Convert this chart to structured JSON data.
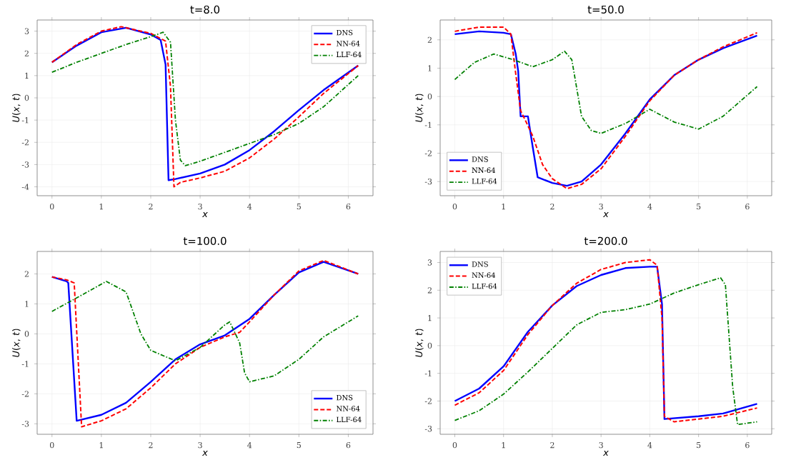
{
  "chart_data": [
    {
      "type": "line",
      "title": "t=8.0",
      "xlabel": "x",
      "ylabel": "*U*(*x*, *t*)",
      "xlim": [
        -0.3,
        6.5
      ],
      "ylim": [
        -4.4,
        3.5
      ],
      "xticks": [
        0,
        1,
        2,
        3,
        4,
        5,
        6
      ],
      "yticks": [
        -4,
        -3,
        -2,
        -1,
        0,
        1,
        2,
        3
      ],
      "grid": true,
      "legend": "top right",
      "series": [
        {
          "name": "DNS",
          "color": "#0000ff",
          "line_style": "solid",
          "x": [
            0,
            0.5,
            1.0,
            1.5,
            2.0,
            2.2,
            2.3,
            2.36,
            2.5,
            3.0,
            3.5,
            4.0,
            4.5,
            5.0,
            5.5,
            6.2
          ],
          "values": [
            1.6,
            2.35,
            2.95,
            3.15,
            2.85,
            2.6,
            1.5,
            -3.7,
            -3.65,
            -3.4,
            -3.0,
            -2.35,
            -1.5,
            -0.55,
            0.35,
            1.45
          ]
        },
        {
          "name": "NN-64",
          "color": "#ff0000",
          "line_style": "dashed",
          "x": [
            0,
            0.5,
            1.0,
            1.4,
            2.0,
            2.3,
            2.4,
            2.47,
            2.6,
            3.0,
            3.5,
            4.0,
            4.5,
            5.0,
            5.5,
            6.2
          ],
          "values": [
            1.6,
            2.4,
            3.0,
            3.2,
            2.9,
            2.55,
            0.5,
            -4.0,
            -3.8,
            -3.6,
            -3.3,
            -2.7,
            -1.85,
            -0.85,
            0.2,
            1.45
          ]
        },
        {
          "name": "LLF-64",
          "color": "#008000",
          "line_style": "dashdot",
          "x": [
            0,
            0.5,
            1.0,
            1.5,
            2.0,
            2.25,
            2.4,
            2.5,
            2.6,
            2.7,
            3.0,
            3.5,
            4.0,
            4.5,
            5.0,
            5.5,
            6.2
          ],
          "values": [
            1.15,
            1.6,
            2.0,
            2.4,
            2.75,
            2.95,
            2.5,
            -1.0,
            -2.8,
            -3.05,
            -2.85,
            -2.45,
            -2.05,
            -1.65,
            -1.15,
            -0.4,
            1.0
          ]
        }
      ]
    },
    {
      "type": "line",
      "title": "t=50.0",
      "xlabel": "x",
      "ylabel": "*U*(*x*, *t*)",
      "xlim": [
        -0.3,
        6.5
      ],
      "ylim": [
        -3.5,
        2.7
      ],
      "xticks": [
        0,
        1,
        2,
        3,
        4,
        5,
        6
      ],
      "yticks": [
        -3,
        -2,
        -1,
        0,
        1,
        2
      ],
      "grid": true,
      "legend": "bottom left",
      "series": [
        {
          "name": "DNS",
          "color": "#0000ff",
          "line_style": "solid",
          "x": [
            0,
            0.5,
            1.0,
            1.15,
            1.25,
            1.3,
            1.35,
            1.5,
            1.6,
            1.7,
            2.0,
            2.3,
            2.6,
            3.0,
            3.5,
            4.0,
            4.5,
            5.0,
            5.5,
            6.2
          ],
          "values": [
            2.2,
            2.3,
            2.25,
            2.2,
            1.5,
            0.9,
            -0.7,
            -0.7,
            -1.8,
            -2.85,
            -3.05,
            -3.15,
            -3.0,
            -2.4,
            -1.3,
            -0.1,
            0.75,
            1.3,
            1.7,
            2.15
          ]
        },
        {
          "name": "NN-64",
          "color": "#ff0000",
          "line_style": "dashed",
          "x": [
            0,
            0.5,
            1.0,
            1.15,
            1.25,
            1.35,
            1.45,
            1.6,
            1.8,
            2.0,
            2.3,
            2.6,
            3.0,
            3.5,
            4.0,
            4.5,
            5.0,
            5.5,
            6.2
          ],
          "values": [
            2.3,
            2.45,
            2.45,
            2.2,
            0.8,
            -0.5,
            -0.85,
            -1.4,
            -2.4,
            -2.9,
            -3.25,
            -3.1,
            -2.55,
            -1.4,
            -0.15,
            0.75,
            1.3,
            1.75,
            2.25
          ]
        },
        {
          "name": "LLF-64",
          "color": "#008000",
          "line_style": "dashdot",
          "x": [
            0,
            0.4,
            0.8,
            1.2,
            1.6,
            2.0,
            2.25,
            2.4,
            2.6,
            2.8,
            3.0,
            3.5,
            4.0,
            4.5,
            5.0,
            5.5,
            6.2
          ],
          "values": [
            0.6,
            1.2,
            1.5,
            1.3,
            1.05,
            1.3,
            1.6,
            1.3,
            -0.7,
            -1.2,
            -1.3,
            -0.95,
            -0.45,
            -0.9,
            -1.15,
            -0.7,
            0.35
          ]
        }
      ]
    },
    {
      "type": "line",
      "title": "t=100.0",
      "xlabel": "x",
      "ylabel": "*U*(*x*, *t*)",
      "xlim": [
        -0.3,
        6.5
      ],
      "ylim": [
        -3.35,
        2.75
      ],
      "xticks": [
        0,
        1,
        2,
        3,
        4,
        5,
        6
      ],
      "yticks": [
        -3,
        -2,
        -1,
        0,
        1,
        2
      ],
      "grid": true,
      "legend": "bottom right",
      "series": [
        {
          "name": "DNS",
          "color": "#0000ff",
          "line_style": "solid",
          "x": [
            0,
            0.3,
            0.33,
            0.5,
            1.0,
            1.5,
            2.0,
            2.5,
            3.0,
            3.5,
            4.0,
            4.5,
            5.0,
            5.5,
            6.2
          ],
          "values": [
            1.9,
            1.75,
            1.7,
            -2.9,
            -2.7,
            -2.3,
            -1.6,
            -0.85,
            -0.35,
            -0.05,
            0.5,
            1.3,
            2.05,
            2.4,
            2.0
          ]
        },
        {
          "name": "NN-64",
          "color": "#ff0000",
          "line_style": "dashed",
          "x": [
            0,
            0.3,
            0.45,
            0.6,
            1.0,
            1.5,
            2.0,
            2.5,
            3.0,
            3.5,
            3.8,
            4.0,
            4.5,
            5.0,
            5.5,
            6.2
          ],
          "values": [
            1.9,
            1.8,
            1.7,
            -3.1,
            -2.9,
            -2.5,
            -1.8,
            -1.0,
            -0.45,
            -0.1,
            0.05,
            0.4,
            1.3,
            2.1,
            2.45,
            2.0
          ]
        },
        {
          "name": "LLF-64",
          "color": "#008000",
          "line_style": "dashdot",
          "x": [
            0,
            0.5,
            1.1,
            1.5,
            1.8,
            2.0,
            2.5,
            3.0,
            3.5,
            3.6,
            3.8,
            3.9,
            4.0,
            4.5,
            5.0,
            5.5,
            6.2
          ],
          "values": [
            0.75,
            1.2,
            1.75,
            1.4,
            0.0,
            -0.55,
            -0.9,
            -0.45,
            0.3,
            0.4,
            -0.3,
            -1.3,
            -1.6,
            -1.4,
            -0.85,
            -0.1,
            0.6
          ]
        }
      ]
    },
    {
      "type": "line",
      "title": "t=200.0",
      "xlabel": "x",
      "ylabel": "*U*(*x*, *t*)",
      "xlim": [
        -0.3,
        6.5
      ],
      "ylim": [
        -3.2,
        3.4
      ],
      "xticks": [
        0,
        1,
        2,
        3,
        4,
        5,
        6
      ],
      "yticks": [
        -3,
        -2,
        -1,
        0,
        1,
        2,
        3
      ],
      "grid": true,
      "legend": "top left",
      "series": [
        {
          "name": "DNS",
          "color": "#0000ff",
          "line_style": "solid",
          "x": [
            0,
            0.5,
            1.0,
            1.5,
            2.0,
            2.5,
            3.0,
            3.5,
            4.0,
            4.15,
            4.25,
            4.3,
            5.0,
            5.5,
            6.2
          ],
          "values": [
            -2.0,
            -1.55,
            -0.75,
            0.5,
            1.45,
            2.15,
            2.55,
            2.8,
            2.85,
            2.85,
            1.5,
            -2.65,
            -2.55,
            -2.45,
            -2.1
          ]
        },
        {
          "name": "NN-64",
          "color": "#ff0000",
          "line_style": "dashed",
          "x": [
            0,
            0.5,
            1.0,
            1.5,
            2.0,
            2.5,
            3.0,
            3.5,
            4.0,
            4.15,
            4.25,
            4.3,
            4.5,
            5.0,
            5.5,
            6.2
          ],
          "values": [
            -2.15,
            -1.7,
            -0.9,
            0.4,
            1.45,
            2.25,
            2.75,
            3.0,
            3.1,
            2.9,
            1.0,
            -2.55,
            -2.75,
            -2.65,
            -2.55,
            -2.25
          ]
        },
        {
          "name": "LLF-64",
          "color": "#008000",
          "line_style": "dashdot",
          "x": [
            0,
            0.5,
            1.0,
            1.5,
            2.0,
            2.5,
            3.0,
            3.5,
            4.0,
            4.5,
            5.0,
            5.45,
            5.55,
            5.7,
            5.8,
            6.2
          ],
          "values": [
            -2.7,
            -2.35,
            -1.75,
            -0.95,
            -0.1,
            0.75,
            1.2,
            1.3,
            1.5,
            1.9,
            2.2,
            2.45,
            2.2,
            -1.5,
            -2.85,
            -2.75
          ]
        }
      ]
    }
  ]
}
